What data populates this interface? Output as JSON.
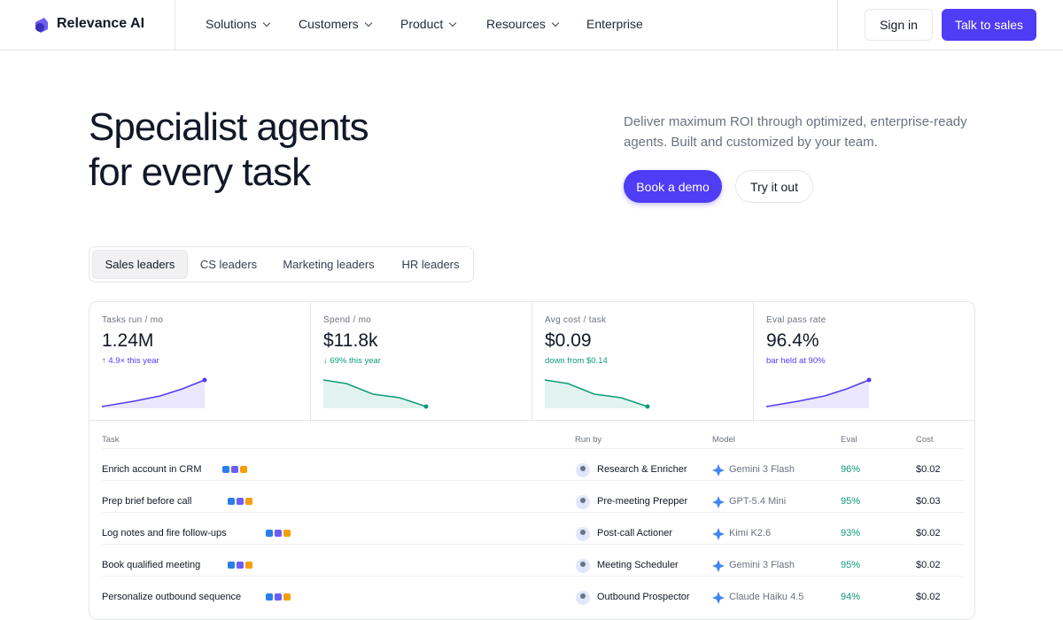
{
  "nav": {
    "brand": "Relevance AI",
    "menu": [
      "Solutions",
      "Customers",
      "Product",
      "Resources",
      "Enterprise"
    ],
    "sign_in": "Sign in",
    "cta": "Talk to sales"
  },
  "hero": {
    "title": [
      "Specialist agents",
      "for every task"
    ],
    "subtitle": "Deliver maximum ROI through optimized, enterprise-ready agents. Built and customized by your team.",
    "primary": "Book a demo",
    "secondary": "Try it out"
  },
  "tabs": [
    "Sales leaders",
    "CS leaders",
    "Marketing leaders",
    "HR leaders"
  ],
  "stats": [
    {
      "label": "Tasks run / mo",
      "value": "1.24M",
      "note": "↑ 4.9× this year"
    },
    {
      "label": "Spend / mo",
      "value": "$11.8k",
      "note": "↓ 69% this year"
    },
    {
      "label": "Avg cost / task",
      "value": "$0.09",
      "note": "down from $0.14"
    },
    {
      "label": "Eval pass rate",
      "value": "96.4%",
      "note": "bar held at 90%"
    }
  ],
  "table": {
    "header": [
      "Task",
      "Run by",
      "Model",
      "Eval",
      "Cost"
    ],
    "rows": [
      [
        "Enrich account in CRM",
        "Research & Enricher",
        "Gemini 3 Flash",
        "96%",
        "$0.02"
      ],
      [
        "Prep brief before call",
        "Pre-meeting Prepper",
        "GPT-5.4 Mini",
        "95%",
        "$0.03"
      ],
      [
        "Log notes and fire follow-ups",
        "Post-call Actioner",
        "Kimi K2.6",
        "93%",
        "$0.02"
      ],
      [
        "Book qualified meeting",
        "Meeting Scheduler",
        "Gemini 3 Flash",
        "95%",
        "$0.02"
      ],
      [
        "Personalize outbound sequence",
        "Outbound Prospector",
        "Claude Haiku 4.5",
        "94%",
        "$0.02"
      ]
    ]
  }
}
